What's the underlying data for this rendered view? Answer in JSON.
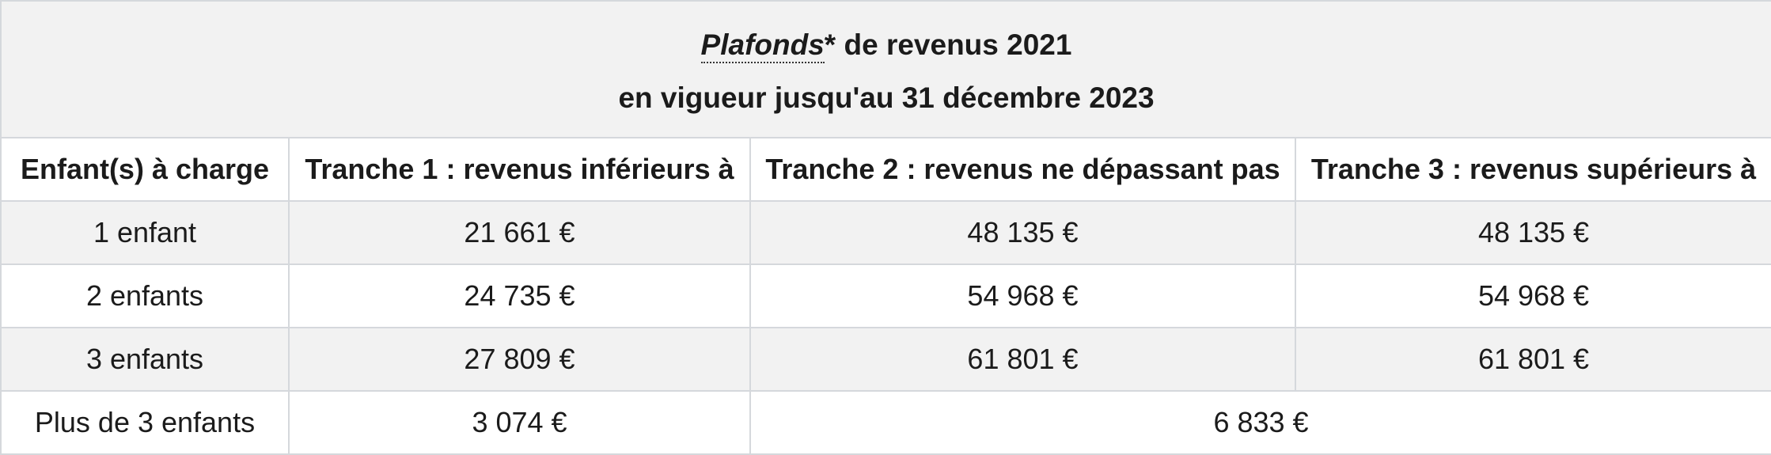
{
  "caption": {
    "abbr_label": "Plafonds",
    "asterisk": "*",
    "line1_rest": " de revenus 2021",
    "line2": "en vigueur jusqu'au 31 décembre 2023"
  },
  "headers": [
    "Enfant(s) à charge",
    "Tranche 1 : revenus inférieurs à",
    "Tranche 2 : revenus ne dépassant pas",
    "Tranche 3 : revenus supérieurs à"
  ],
  "rows": [
    {
      "label": "1 enfant",
      "t1": "21 661 €",
      "t2": "48 135 €",
      "t3": "48 135 €"
    },
    {
      "label": "2 enfants",
      "t1": "24 735 €",
      "t2": "54 968 €",
      "t3": "54 968 €"
    },
    {
      "label": "3 enfants",
      "t1": "27 809 €",
      "t2": "61 801 €",
      "t3": "61 801 €"
    }
  ],
  "last_row": {
    "label": "Plus de 3 enfants",
    "t1": "3 074 €",
    "t23": "6 833 €"
  }
}
